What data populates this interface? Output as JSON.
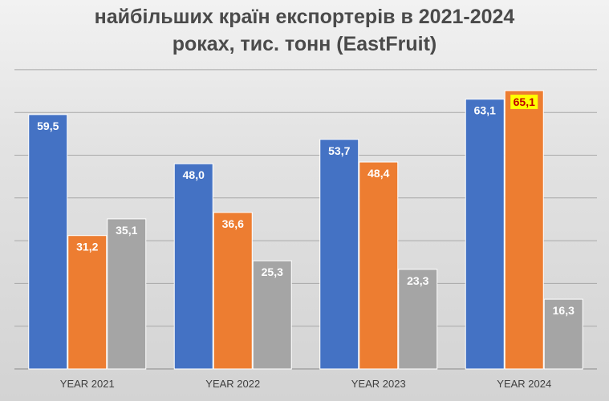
{
  "title_lines": [
    "найбільших країн експортерів в 2021-2024",
    "роках, тис. тонн (EastFruit)"
  ],
  "colors": {
    "series": [
      "#4472c4",
      "#ed7d31",
      "#a5a5a5"
    ],
    "highlight_bg": "#ffff00",
    "highlight_text": "#c00000"
  },
  "chart_data": {
    "type": "bar",
    "categories": [
      "YEAR 2021",
      "YEAR 2022",
      "YEAR 2023",
      "YEAR 2024"
    ],
    "series": [
      {
        "values": [
          59.5,
          48.0,
          53.7,
          63.1
        ],
        "labels": [
          "59,5",
          "48,0",
          "53,7",
          "63,1"
        ]
      },
      {
        "values": [
          31.2,
          36.6,
          48.4,
          65.1
        ],
        "labels": [
          "31,2",
          "36,6",
          "48,4",
          "65,1"
        ]
      },
      {
        "values": [
          35.1,
          25.3,
          23.3,
          16.3
        ],
        "labels": [
          "35,1",
          "25,3",
          "23,3",
          "16,3"
        ]
      }
    ],
    "highlighted_label": {
      "series": 1,
      "category": 3
    },
    "ylim": [
      0,
      70
    ],
    "grid": true,
    "legend": "none"
  }
}
